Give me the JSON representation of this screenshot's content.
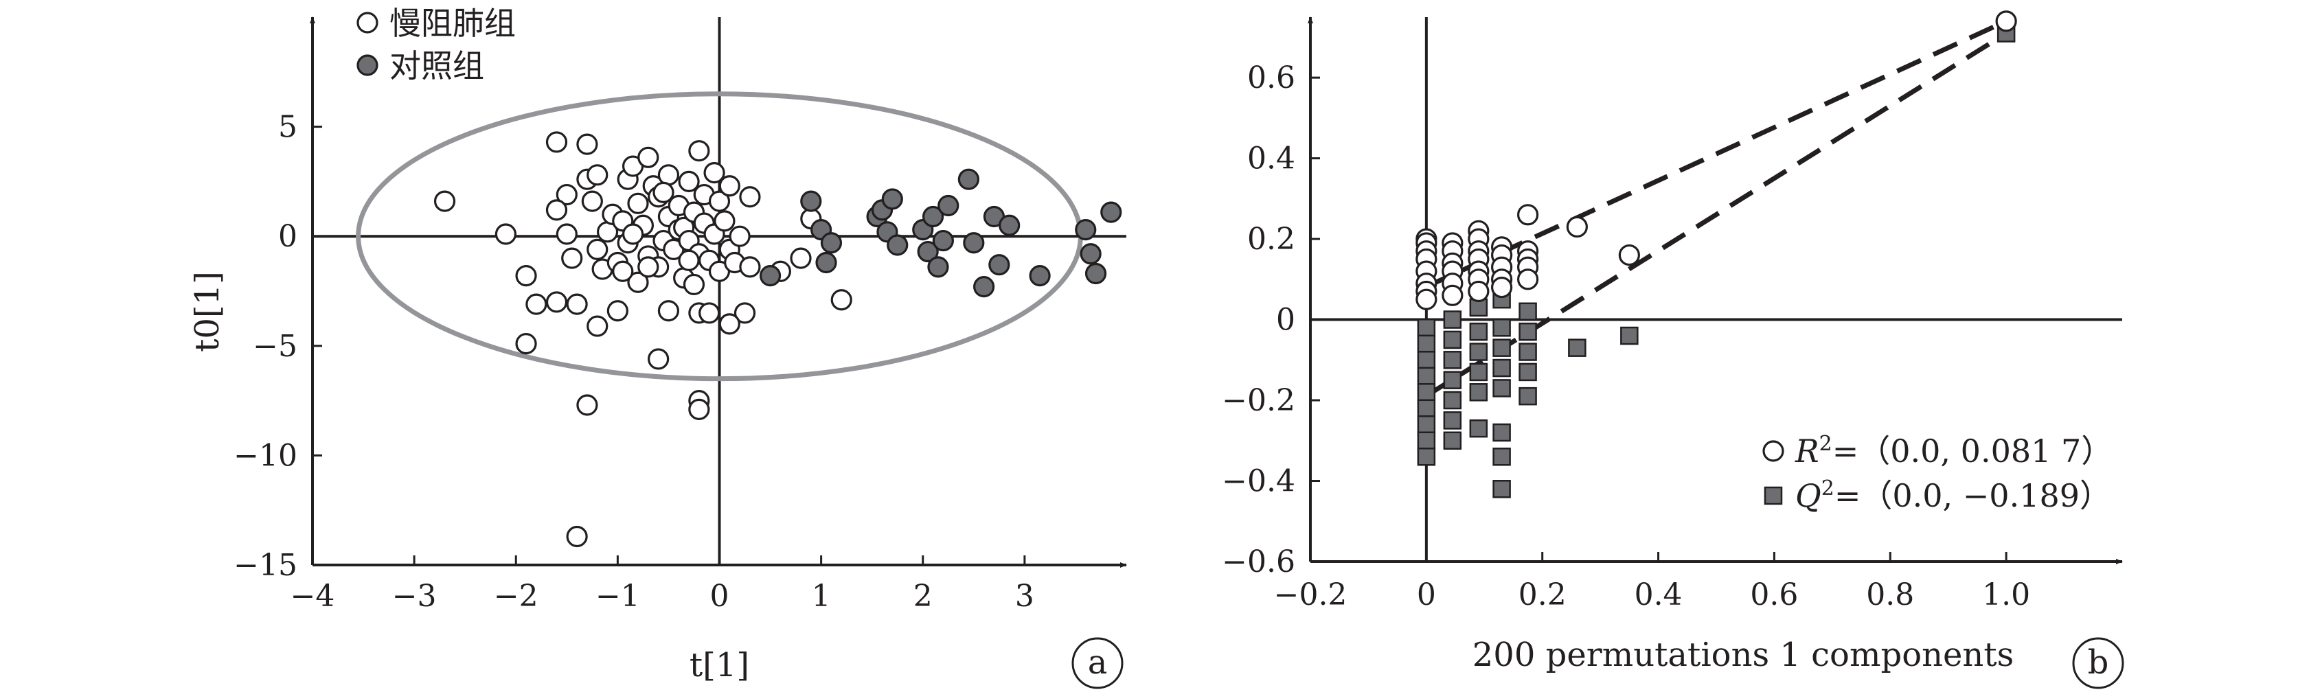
{
  "chart_data": [
    {
      "type": "scatter",
      "panel_label": "a",
      "xlabel": "t[1]",
      "ylabel": "t0[1]",
      "xlim": [
        -4,
        4
      ],
      "ylim": [
        -15,
        10
      ],
      "x_ticks": [
        -4,
        -3,
        -2,
        -1,
        0,
        1,
        2,
        3
      ],
      "y_ticks": [
        5,
        0,
        -5,
        -10,
        -15
      ],
      "x_tick_labels": [
        "−4",
        "−3",
        "−2",
        "−1",
        "0",
        "1",
        "2",
        "3"
      ],
      "y_tick_labels": [
        "5",
        "0",
        "−5",
        "−10",
        "−15"
      ],
      "legend_position": "top-left",
      "confidence_ellipse": {
        "center": [
          0,
          0
        ],
        "semi_x": 3.55,
        "semi_y": 6.5
      },
      "series": [
        {
          "name": "慢阻肺组",
          "marker": "open-circle",
          "color": "#ffffff",
          "points": [
            [
              -2.7,
              1.6
            ],
            [
              -2.1,
              0.1
            ],
            [
              -1.6,
              4.3
            ],
            [
              -1.9,
              -1.8
            ],
            [
              -1.8,
              -3.1
            ],
            [
              -1.9,
              -4.9
            ],
            [
              -1.6,
              -3.0
            ],
            [
              -1.5,
              0.1
            ],
            [
              -1.5,
              1.9
            ],
            [
              -1.45,
              -1.0
            ],
            [
              -1.4,
              -3.1
            ],
            [
              -1.3,
              2.6
            ],
            [
              -1.25,
              1.6
            ],
            [
              -1.2,
              2.8
            ],
            [
              -1.2,
              -0.6
            ],
            [
              -1.15,
              -1.5
            ],
            [
              -1.1,
              0.2
            ],
            [
              -1.05,
              1.0
            ],
            [
              -1.0,
              -1.2
            ],
            [
              -1.0,
              -3.4
            ],
            [
              -0.95,
              0.7
            ],
            [
              -0.9,
              2.6
            ],
            [
              -0.9,
              -0.3
            ],
            [
              -0.85,
              3.2
            ],
            [
              -0.8,
              -2.1
            ],
            [
              -0.8,
              1.5
            ],
            [
              -0.75,
              0.5
            ],
            [
              -0.7,
              -0.9
            ],
            [
              -0.7,
              3.6
            ],
            [
              -0.65,
              2.3
            ],
            [
              -0.6,
              1.8
            ],
            [
              -0.6,
              -1.4
            ],
            [
              -0.55,
              -0.2
            ],
            [
              -0.5,
              0.9
            ],
            [
              -0.5,
              2.8
            ],
            [
              -0.45,
              -0.6
            ],
            [
              -0.4,
              0.3
            ],
            [
              -0.4,
              1.4
            ],
            [
              -0.35,
              -1.9
            ],
            [
              -0.35,
              0.4
            ],
            [
              -0.3,
              2.5
            ],
            [
              -0.3,
              -0.2
            ],
            [
              -0.25,
              1.1
            ],
            [
              -0.2,
              -0.8
            ],
            [
              -0.2,
              3.9
            ],
            [
              -0.15,
              0.6
            ],
            [
              -0.15,
              1.9
            ],
            [
              -0.1,
              -1.1
            ],
            [
              -0.05,
              0.1
            ],
            [
              -0.05,
              2.9
            ],
            [
              0.0,
              -1.6
            ],
            [
              0.0,
              1.6
            ],
            [
              0.05,
              0.7
            ],
            [
              0.1,
              -0.6
            ],
            [
              0.1,
              2.3
            ],
            [
              0.15,
              -1.2
            ],
            [
              0.2,
              0.0
            ],
            [
              0.25,
              -3.5
            ],
            [
              0.3,
              1.8
            ],
            [
              0.3,
              -1.4
            ],
            [
              -0.5,
              -3.4
            ],
            [
              -0.6,
              -5.6
            ],
            [
              -0.25,
              -2.2
            ],
            [
              -0.2,
              -3.5
            ],
            [
              -0.1,
              -3.5
            ],
            [
              -0.2,
              -7.5
            ],
            [
              -0.2,
              -7.9
            ],
            [
              -1.3,
              -7.7
            ],
            [
              -1.4,
              -13.7
            ],
            [
              0.1,
              -4.0
            ],
            [
              -0.7,
              -1.4
            ],
            [
              -1.3,
              4.2
            ],
            [
              -1.6,
              1.2
            ],
            [
              -0.95,
              -1.6
            ],
            [
              -0.55,
              2.0
            ],
            [
              -0.85,
              0.1
            ],
            [
              -1.2,
              -4.1
            ],
            [
              -0.3,
              -1.1
            ],
            [
              0.9,
              0.8
            ],
            [
              1.2,
              -2.9
            ],
            [
              0.6,
              -1.6
            ],
            [
              0.8,
              -1.0
            ]
          ]
        },
        {
          "name": "对照组",
          "marker": "filled-circle",
          "color": "#6d6e71",
          "points": [
            [
              0.5,
              -1.8
            ],
            [
              0.9,
              1.6
            ],
            [
              1.0,
              0.3
            ],
            [
              1.05,
              -1.2
            ],
            [
              1.1,
              -0.3
            ],
            [
              1.55,
              0.9
            ],
            [
              1.6,
              1.2
            ],
            [
              1.65,
              0.2
            ],
            [
              1.7,
              1.7
            ],
            [
              1.75,
              -0.4
            ],
            [
              2.0,
              0.3
            ],
            [
              2.05,
              -0.7
            ],
            [
              2.1,
              0.9
            ],
            [
              2.15,
              -1.4
            ],
            [
              2.2,
              -0.2
            ],
            [
              2.25,
              1.4
            ],
            [
              2.45,
              2.6
            ],
            [
              2.5,
              -0.3
            ],
            [
              2.6,
              -2.3
            ],
            [
              2.7,
              0.9
            ],
            [
              2.75,
              -1.3
            ],
            [
              2.85,
              0.5
            ],
            [
              3.15,
              -1.8
            ],
            [
              3.6,
              0.3
            ],
            [
              3.65,
              -0.8
            ],
            [
              3.7,
              -1.7
            ],
            [
              3.85,
              1.1
            ]
          ]
        }
      ]
    },
    {
      "type": "scatter",
      "panel_label": "b",
      "xlabel": "200 permutations 1 components",
      "ylabel": "",
      "xlim": [
        -0.2,
        1.2
      ],
      "ylim": [
        -0.6,
        0.75
      ],
      "x_ticks": [
        -0.2,
        0,
        0.2,
        0.4,
        0.6,
        0.8,
        1.0
      ],
      "y_ticks": [
        0.6,
        0.4,
        0.2,
        0,
        -0.2,
        -0.4,
        -0.6
      ],
      "x_tick_labels": [
        "−0.2",
        "0",
        "0.2",
        "0.4",
        "0.6",
        "0.8",
        "1.0"
      ],
      "y_tick_labels": [
        "0.6",
        "0.4",
        "0.2",
        "0",
        "−0.2",
        "−0.4",
        "−0.6"
      ],
      "legend_position": "bottom-right",
      "regression_lines": [
        {
          "series": "R2",
          "from": [
            0.0,
            0.0817
          ],
          "to": [
            1.0,
            0.74
          ]
        },
        {
          "series": "Q2",
          "from": [
            0.0,
            -0.189
          ],
          "to": [
            1.0,
            0.71
          ]
        }
      ],
      "series": [
        {
          "name": "R2",
          "legend_prefix": "R",
          "legend_text": "=（0.0, 0.081 7）",
          "marker": "open-circle",
          "color": "#ffffff",
          "points": [
            [
              0.0,
              0.2
            ],
            [
              0.0,
              0.19
            ],
            [
              0.0,
              0.17
            ],
            [
              0.0,
              0.15
            ],
            [
              0.0,
              0.12
            ],
            [
              0.0,
              0.09
            ],
            [
              0.0,
              0.07
            ],
            [
              0.0,
              0.05
            ],
            [
              0.045,
              0.19
            ],
            [
              0.045,
              0.17
            ],
            [
              0.045,
              0.14
            ],
            [
              0.045,
              0.12
            ],
            [
              0.045,
              0.09
            ],
            [
              0.045,
              0.06
            ],
            [
              0.09,
              0.22
            ],
            [
              0.09,
              0.2
            ],
            [
              0.09,
              0.17
            ],
            [
              0.09,
              0.15
            ],
            [
              0.09,
              0.12
            ],
            [
              0.09,
              0.1
            ],
            [
              0.09,
              0.07
            ],
            [
              0.13,
              0.18
            ],
            [
              0.13,
              0.16
            ],
            [
              0.13,
              0.13
            ],
            [
              0.13,
              0.1
            ],
            [
              0.13,
              0.08
            ],
            [
              0.175,
              0.26
            ],
            [
              0.175,
              0.17
            ],
            [
              0.175,
              0.15
            ],
            [
              0.175,
              0.13
            ],
            [
              0.175,
              0.1
            ],
            [
              0.26,
              0.23
            ],
            [
              0.35,
              0.16
            ],
            [
              1.0,
              0.74
            ]
          ]
        },
        {
          "name": "Q2",
          "legend_prefix": "Q",
          "legend_text": "=（0.0, −0.189）",
          "marker": "filled-square",
          "color": "#6d6e71",
          "points": [
            [
              0.0,
              -0.02
            ],
            [
              0.0,
              -0.06
            ],
            [
              0.0,
              -0.1
            ],
            [
              0.0,
              -0.14
            ],
            [
              0.0,
              -0.18
            ],
            [
              0.0,
              -0.22
            ],
            [
              0.0,
              -0.26
            ],
            [
              0.0,
              -0.3
            ],
            [
              0.0,
              -0.34
            ],
            [
              0.045,
              0.0
            ],
            [
              0.045,
              -0.05
            ],
            [
              0.045,
              -0.1
            ],
            [
              0.045,
              -0.15
            ],
            [
              0.045,
              -0.2
            ],
            [
              0.045,
              -0.25
            ],
            [
              0.045,
              -0.3
            ],
            [
              0.09,
              0.03
            ],
            [
              0.09,
              -0.03
            ],
            [
              0.09,
              -0.08
            ],
            [
              0.09,
              -0.13
            ],
            [
              0.09,
              -0.18
            ],
            [
              0.09,
              -0.27
            ],
            [
              0.13,
              0.05
            ],
            [
              0.13,
              -0.02
            ],
            [
              0.13,
              -0.07
            ],
            [
              0.13,
              -0.12
            ],
            [
              0.13,
              -0.17
            ],
            [
              0.13,
              -0.28
            ],
            [
              0.13,
              -0.34
            ],
            [
              0.13,
              -0.42
            ],
            [
              0.175,
              0.02
            ],
            [
              0.175,
              -0.03
            ],
            [
              0.175,
              -0.08
            ],
            [
              0.175,
              -0.13
            ],
            [
              0.175,
              -0.19
            ],
            [
              0.26,
              -0.07
            ],
            [
              0.35,
              -0.04
            ],
            [
              1.0,
              0.71
            ]
          ]
        }
      ]
    }
  ]
}
